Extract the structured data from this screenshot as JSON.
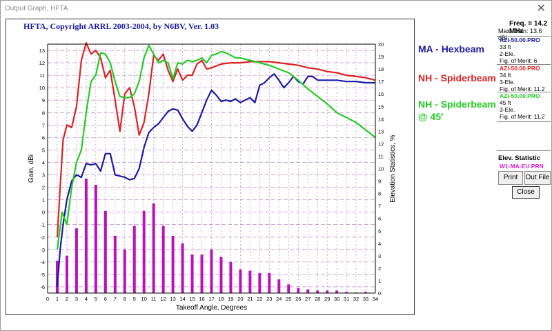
{
  "window": {
    "title": "Output Graph, HFTA",
    "close_glyph": "✕"
  },
  "chart_title": "HFTA, Copyright ARRL 2003-2004, by N6BV, Ver. 1.03",
  "legend": {
    "ma": "MA - Hexbeam",
    "nh": "NH - Spiderbeam",
    "nh45_line1": "NH - Spiderbeam",
    "nh45_line2": "@ 45'"
  },
  "side_panel": {
    "freq": "Freq. = 14.2 MHz",
    "max_gain": "Max. Gain: 13.6 dBi",
    "files": [
      {
        "name": "AZI-50.00.PRO",
        "height": "33 ft",
        "elements": "2-Ele.",
        "merit": "Fig. of Merit:  6",
        "color": "#1a1aa6"
      },
      {
        "name": "AZI-50.00.PRO",
        "height": "34 ft",
        "elements": "3-Ele.",
        "merit": "Fig. of Merit:  11.2",
        "color": "#dd2222"
      },
      {
        "name": "AZI-50.00.PRO",
        "height": "45 ft",
        "elements": "3-Ele.",
        "merit": "Fig. of Merit:  11.2",
        "color": "#22cc22"
      }
    ],
    "elev_title": "Elev. Statistic",
    "elev_file": "W1-MA-EU.PRN",
    "buttons": {
      "print": "Print",
      "out_file": "Out File",
      "close": "Close"
    }
  },
  "chart_data": {
    "type": "line",
    "xlabel": "Takeoff Angle, Degrees",
    "ylabel": "Gain, dBi",
    "y2label": "Elevation Statistics, %",
    "xlim": [
      0,
      34
    ],
    "ylim": [
      -6.5,
      13.5
    ],
    "y2lim": [
      0,
      20
    ],
    "x_ticks": [
      0,
      1,
      2,
      3,
      4,
      5,
      6,
      7,
      8,
      9,
      10,
      11,
      12,
      13,
      14,
      15,
      16,
      17,
      18,
      19,
      20,
      21,
      22,
      23,
      24,
      25,
      26,
      27,
      28,
      29,
      30,
      31,
      32,
      33,
      34
    ],
    "y_ticks": [
      -6,
      -5,
      -4,
      -3,
      -2,
      -1,
      0,
      1,
      2,
      3,
      4,
      5,
      6,
      7,
      8,
      9,
      10,
      11,
      12,
      13
    ],
    "y2_ticks": [
      0,
      1,
      2,
      3,
      4,
      5,
      6,
      7,
      8,
      9,
      10,
      11,
      12,
      13,
      14,
      15,
      16,
      17,
      18,
      19,
      20
    ],
    "grid": true,
    "series": [
      {
        "name": "MA - Hexbeam",
        "color": "#1a1aa6",
        "x": [
          1,
          1.3,
          1.6,
          2,
          2.5,
          3,
          3.5,
          4,
          4.5,
          5,
          5.5,
          6,
          6.5,
          7,
          7.5,
          8,
          8.5,
          9,
          9.5,
          10,
          10.5,
          11,
          11.5,
          12,
          12.5,
          13,
          13.5,
          14,
          14.5,
          15,
          15.5,
          16,
          16.5,
          17,
          17.5,
          18,
          18.5,
          19,
          19.5,
          20,
          20.5,
          21,
          21.5,
          22,
          22.5,
          23,
          23.5,
          24,
          24.5,
          25,
          25.5,
          26,
          26.5,
          27,
          27.5,
          28,
          29,
          30,
          31,
          32,
          33,
          34
        ],
        "values": [
          -6,
          -3,
          -1,
          1,
          2.5,
          3,
          2.8,
          3.9,
          3.8,
          3.9,
          3.3,
          4.7,
          4.7,
          3,
          2.9,
          2.8,
          2.6,
          2.7,
          3.5,
          5.2,
          6.4,
          6.8,
          7.1,
          7.6,
          8.1,
          8.3,
          8.2,
          7.5,
          6.9,
          6.5,
          7.0,
          8.0,
          9.0,
          9.8,
          9.4,
          8.9,
          9.0,
          8.9,
          9.1,
          8.8,
          9.0,
          9.2,
          8.8,
          10.2,
          10.4,
          10.8,
          11.1,
          10.6,
          10.0,
          10.4,
          10.9,
          10.5,
          10.3,
          10.9,
          10.9,
          10.6,
          10.6,
          10.6,
          10.5,
          10.5,
          10.4,
          10.4
        ]
      },
      {
        "name": "NH - Spiderbeam",
        "color": "#dd2222",
        "x": [
          1,
          1.3,
          1.6,
          2,
          2.5,
          3,
          3.5,
          4,
          4.5,
          5,
          5.5,
          6,
          6.5,
          7,
          7.5,
          8,
          8.5,
          9,
          9.5,
          10,
          10.5,
          11,
          11.5,
          12,
          12.5,
          13,
          13.5,
          14,
          14.5,
          15,
          15.5,
          16,
          16.5,
          17,
          18,
          19,
          20,
          21,
          22,
          23,
          24,
          25,
          26,
          27,
          28,
          29,
          30,
          31,
          32,
          33,
          34
        ],
        "values": [
          -2,
          2,
          5.8,
          7,
          6.8,
          8.5,
          12.2,
          13.6,
          12.7,
          13,
          12.4,
          10.8,
          11.4,
          9,
          6.5,
          9.5,
          10,
          8.5,
          6.2,
          7.2,
          9.5,
          12.6,
          12.2,
          12.7,
          11.4,
          10.5,
          11.5,
          10.6,
          11.0,
          11.0,
          11.9,
          12.2,
          11.5,
          11.6,
          11.9,
          12.0,
          12.0,
          12.1,
          12.1,
          12.1,
          12.0,
          11.9,
          11.8,
          11.6,
          11.5,
          11.3,
          11.2,
          11.0,
          10.9,
          10.8,
          10.6
        ]
      },
      {
        "name": "NH - Spiderbeam @ 45'",
        "color": "#22cc22",
        "x": [
          1,
          1.5,
          2,
          2.5,
          3,
          3.5,
          4,
          4.5,
          5,
          5.5,
          6,
          6.5,
          7,
          7.5,
          8,
          8.5,
          9,
          9.5,
          10,
          10.5,
          11,
          11.5,
          12,
          12.5,
          13,
          13.5,
          14,
          14.5,
          15,
          15.5,
          16,
          16.5,
          17,
          17.5,
          18,
          18.5,
          19,
          19.5,
          20,
          21,
          22,
          23,
          24,
          25,
          26,
          27,
          28,
          29,
          30,
          31,
          32,
          33,
          34
        ],
        "values": [
          -3,
          0,
          -1,
          2,
          4,
          5,
          8,
          10.5,
          11,
          12.8,
          12.7,
          12,
          10.5,
          9.3,
          9.2,
          9.2,
          9.5,
          10.5,
          12.4,
          13.4,
          12.7,
          12.0,
          12.2,
          12.0,
          10.7,
          12.0,
          11.9,
          12.2,
          12.1,
          12.2,
          12.4,
          12.0,
          12.6,
          12.7,
          12.9,
          12.8,
          12.6,
          12.4,
          12.4,
          12.2,
          12.0,
          11.8,
          11.5,
          11.2,
          10.6,
          9.9,
          9.3,
          8.7,
          8.0,
          7.6,
          7.2,
          6.6,
          6.0
        ]
      }
    ],
    "bars": {
      "name": "Elevation Statistics",
      "color": "#bb11bb",
      "axis": "y2",
      "x": [
        1,
        2,
        3,
        4,
        5,
        6,
        7,
        8,
        9,
        10,
        11,
        12,
        13,
        14,
        15,
        16,
        17,
        18,
        19,
        20,
        21,
        22,
        23,
        24,
        25,
        26,
        27,
        28,
        29,
        30,
        31,
        32,
        33
      ],
      "values": [
        2.6,
        3.0,
        5.2,
        9.2,
        8.7,
        6.6,
        4.6,
        3.5,
        5.4,
        6.6,
        7.2,
        5.4,
        4.6,
        4.0,
        3.1,
        3.1,
        3.5,
        2.9,
        2.5,
        1.9,
        1.8,
        1.6,
        1.6,
        1.1,
        0.7,
        0.4,
        0.3,
        0.2,
        0.2,
        0.2,
        0.1,
        0.05,
        0.1
      ]
    }
  }
}
